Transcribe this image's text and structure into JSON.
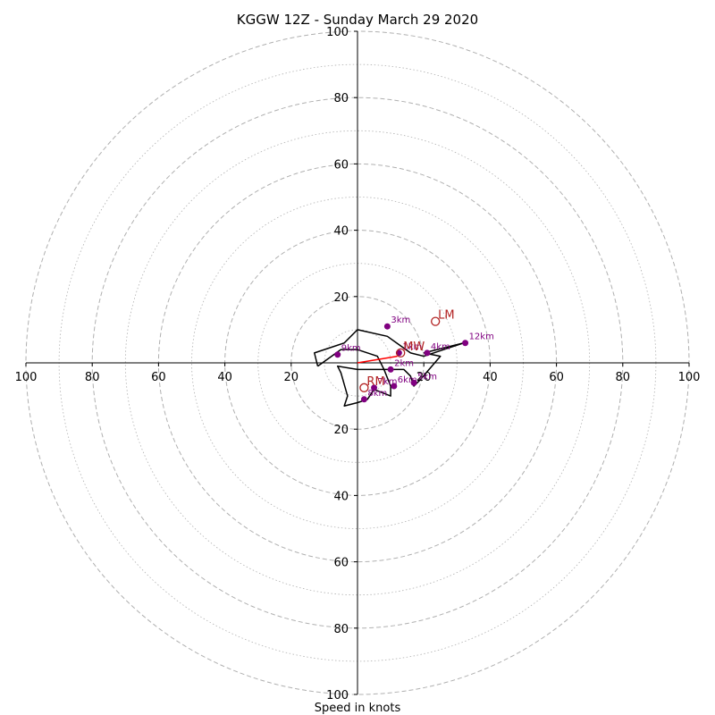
{
  "chart_data": {
    "type": "hodograph",
    "title": "KGGW 12Z - Sunday March 29 2020",
    "xlabel": "Speed in knots",
    "ylabel": "",
    "xlim": [
      -100,
      100
    ],
    "ylim": [
      -100,
      100
    ],
    "major_rings": [
      20,
      40,
      60,
      80,
      100
    ],
    "minor_rings": [
      10,
      30,
      50,
      70,
      90
    ],
    "x_tick_labels": [
      "100",
      "80",
      "60",
      "40",
      "20",
      "20",
      "40",
      "60",
      "80",
      "100"
    ],
    "y_tick_labels_top": [
      "100",
      "80",
      "60",
      "40",
      "20"
    ],
    "y_tick_labels_bottom": [
      "20",
      "40",
      "60",
      "80",
      "100"
    ],
    "hodograph_trace": [
      [
        -12,
        -1
      ],
      [
        -13,
        3
      ],
      [
        -4,
        6
      ],
      [
        0,
        10
      ],
      [
        9,
        8
      ],
      [
        16,
        3
      ],
      [
        20,
        2
      ],
      [
        32,
        6
      ],
      [
        20,
        3
      ],
      [
        25,
        2
      ],
      [
        19,
        -5
      ],
      [
        17,
        -7
      ],
      [
        16,
        -4
      ],
      [
        14,
        -2
      ],
      [
        11,
        -2
      ],
      [
        8,
        -2
      ],
      [
        10,
        -7
      ],
      [
        10,
        -10
      ],
      [
        5,
        -8
      ],
      [
        3,
        -11
      ],
      [
        0,
        -12
      ],
      [
        -4,
        -13
      ],
      [
        -3,
        -10
      ],
      [
        -5,
        -3
      ],
      [
        -6,
        -1
      ],
      [
        0,
        -2
      ],
      [
        8,
        -2
      ],
      [
        6,
        2
      ],
      [
        0,
        4
      ],
      [
        -5,
        4
      ],
      [
        -12,
        -1
      ]
    ],
    "mean_wind_vector": {
      "from": [
        0,
        0
      ],
      "to": [
        12,
        2
      ],
      "color": "#ff0000"
    },
    "height_markers": [
      {
        "label": "1km",
        "u": 12.5,
        "v": 3
      },
      {
        "label": "2km",
        "u": 10,
        "v": -2
      },
      {
        "label": "3km",
        "u": 9,
        "v": 11
      },
      {
        "label": "4km",
        "u": 21,
        "v": 3
      },
      {
        "label": "5km",
        "u": 17,
        "v": -6
      },
      {
        "label": "6km",
        "u": 11,
        "v": -7
      },
      {
        "label": "7km",
        "u": 5,
        "v": -7.5
      },
      {
        "label": "8km",
        "u": 2,
        "v": -11
      },
      {
        "label": "9km",
        "u": -6,
        "v": 2.5
      },
      {
        "label": "12km",
        "u": 32.5,
        "v": 6
      }
    ],
    "storm_motions": [
      {
        "label": "LM",
        "u": 23.5,
        "v": 12.5
      },
      {
        "label": "MW",
        "u": 13,
        "v": 3
      },
      {
        "label": "RM",
        "u": 2,
        "v": -7.5
      }
    ],
    "marker_color": "#800080",
    "trace_color": "#000000",
    "storm_motion_color": "#b22222",
    "grid_color": "#b0b0b0"
  }
}
